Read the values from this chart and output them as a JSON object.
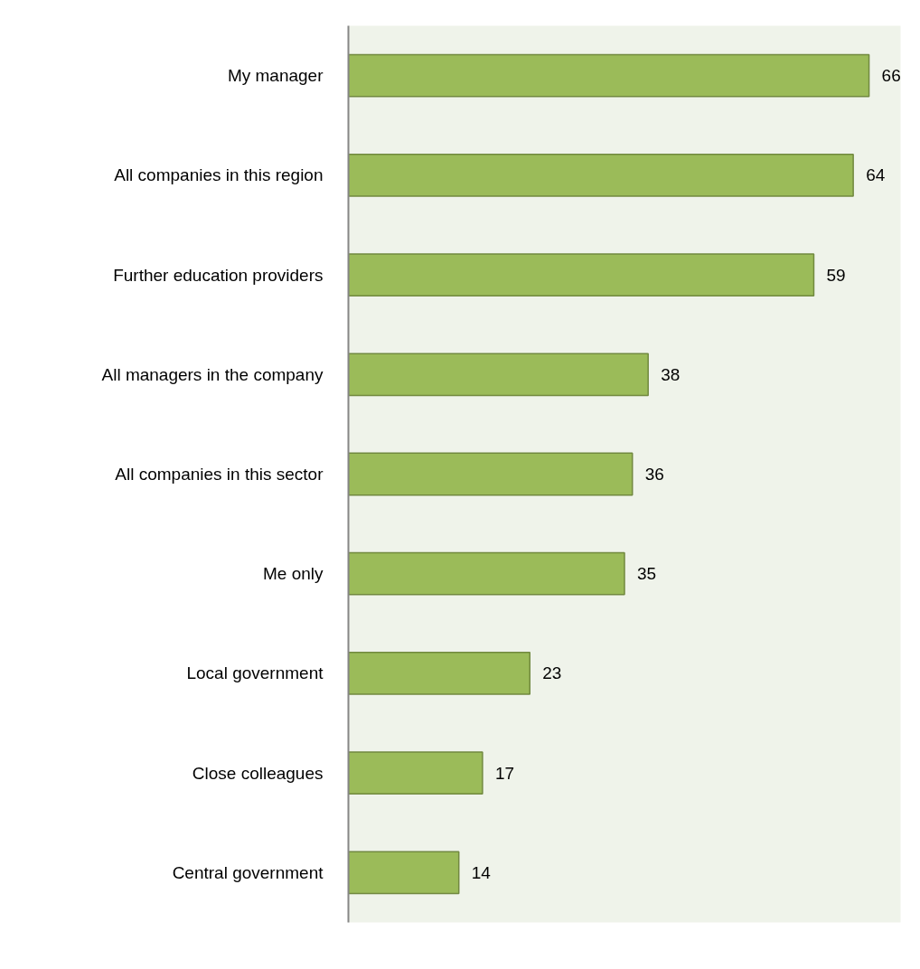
{
  "chart_data": {
    "type": "bar",
    "orientation": "horizontal",
    "categories": [
      "My manager",
      "All companies in this region",
      "Further education providers",
      "All managers in the company",
      "All companies in this sector",
      "Me only",
      "Local government",
      "Close colleagues",
      "Central government"
    ],
    "values": [
      66,
      64,
      59,
      38,
      36,
      35,
      23,
      17,
      14
    ],
    "color": "#9bbb59",
    "xlim": [
      0,
      70
    ],
    "data_labels": true,
    "tick_labels": "y"
  }
}
